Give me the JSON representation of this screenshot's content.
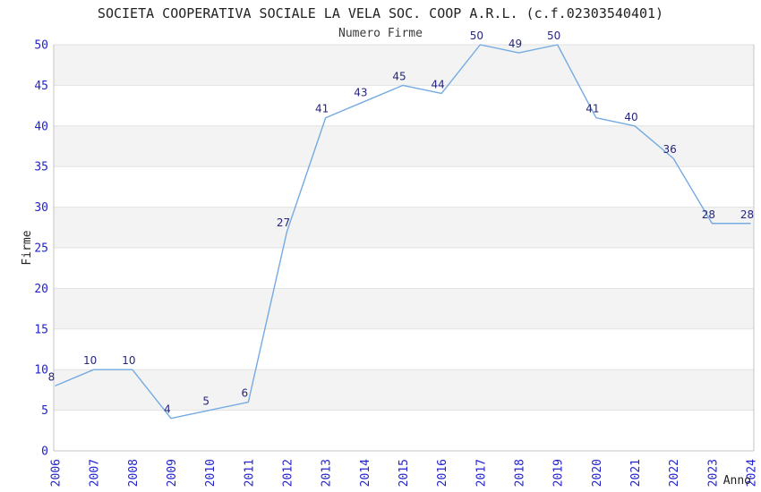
{
  "chart_data": {
    "type": "line",
    "title": "SOCIETA COOPERATIVA SOCIALE LA VELA SOC. COOP A.R.L. (c.f.02303540401)",
    "subtitle": "Numero Firme",
    "xlabel": "Anno",
    "ylabel": "Firme",
    "categories": [
      "2006",
      "2007",
      "2008",
      "2009",
      "2010",
      "2011",
      "2012",
      "2013",
      "2014",
      "2015",
      "2016",
      "2017",
      "2018",
      "2019",
      "2020",
      "2021",
      "2022",
      "2023",
      "2024"
    ],
    "values": [
      8,
      10,
      10,
      4,
      5,
      6,
      27,
      41,
      43,
      45,
      44,
      50,
      49,
      50,
      41,
      40,
      36,
      28,
      28
    ],
    "ylim": [
      0,
      50
    ],
    "ytick_step": 5,
    "ytick_labels": [
      "0",
      "5",
      "10",
      "15",
      "20",
      "25",
      "30",
      "35",
      "40",
      "45",
      "50"
    ],
    "grid": "horizontal-bands",
    "legend": "none"
  },
  "colors": {
    "line": "#74abe2",
    "point_label": "#26267d",
    "tick_label": "#2323cc",
    "band_gray": "#f3f3f3",
    "band_white": "#ffffff",
    "gridline": "#e2e2e2",
    "axis_line": "#c4c4c4"
  }
}
